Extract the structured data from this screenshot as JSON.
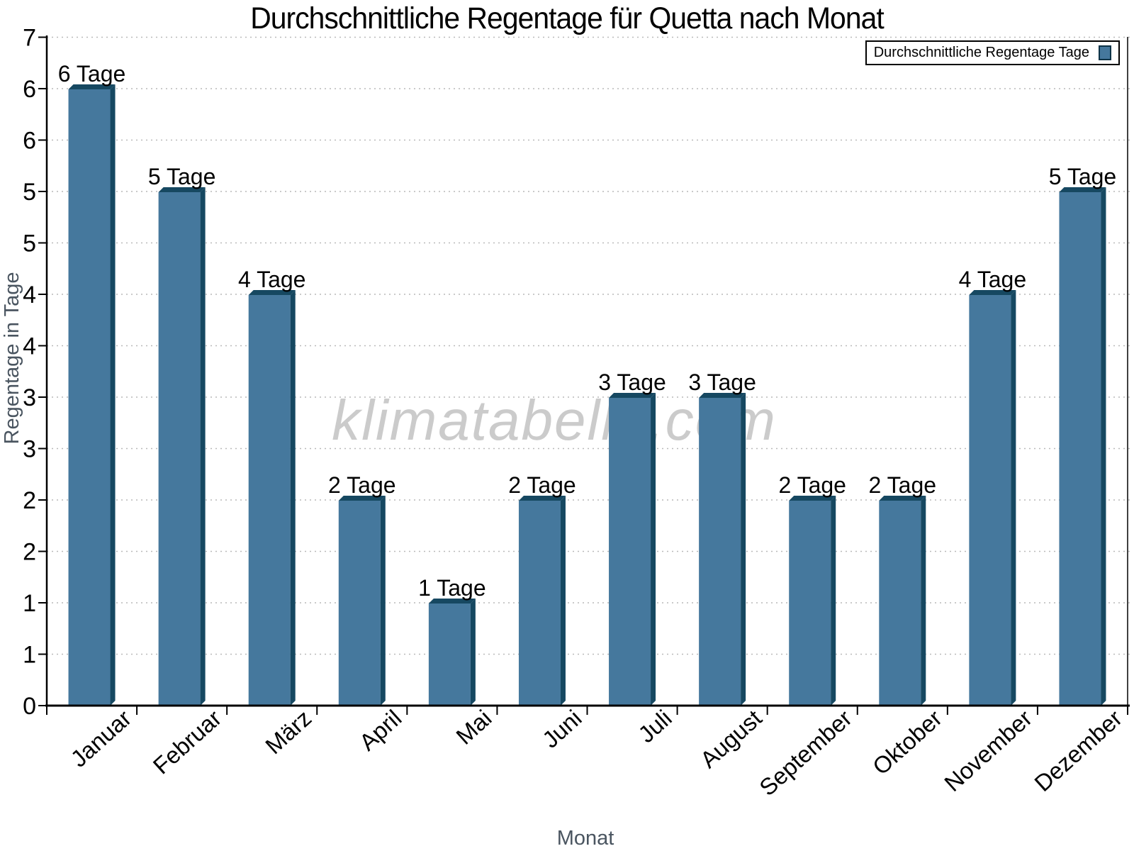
{
  "watermark": "klimatabelle.com",
  "legend": {
    "label": "Durchschnittliche Regentage Tage"
  },
  "y_axis": {
    "tick_labels_bottom_up": [
      "0",
      "1",
      "1",
      "2",
      "2",
      "3",
      "3",
      "4",
      "4",
      "5",
      "5",
      "6",
      "6",
      "7"
    ]
  },
  "chart_data": {
    "type": "bar",
    "title": "Durchschnittliche Regentage für Quetta nach Monat",
    "xlabel": "Monat",
    "ylabel": "Regentage in Tage",
    "categories": [
      "Januar",
      "Februar",
      "März",
      "April",
      "Mai",
      "Juni",
      "Juli",
      "August",
      "September",
      "Oktober",
      "November",
      "Dezember"
    ],
    "values": [
      6,
      5,
      4,
      2,
      1,
      2,
      3,
      3,
      2,
      2,
      4,
      5
    ],
    "bar_labels": [
      "6 Tage",
      "5 Tage",
      "4 Tage",
      "2 Tage",
      "1 Tage",
      "2 Tage",
      "3 Tage",
      "3 Tage",
      "2 Tage",
      "2 Tage",
      "4 Tage",
      "5 Tage"
    ],
    "ylim": [
      0,
      6.5
    ],
    "tick_step": 0.5,
    "grid": "horizontal-dotted",
    "legend_position": "top-right"
  },
  "colors": {
    "bar_front": "#45789d",
    "bar_dark": "#164861",
    "swatch_border": "#0e3347",
    "grid": "#b9b9b9",
    "axis": "#000000",
    "axis_title": "#4a5560",
    "watermark": "#cbcbcb",
    "text": "#000000"
  }
}
